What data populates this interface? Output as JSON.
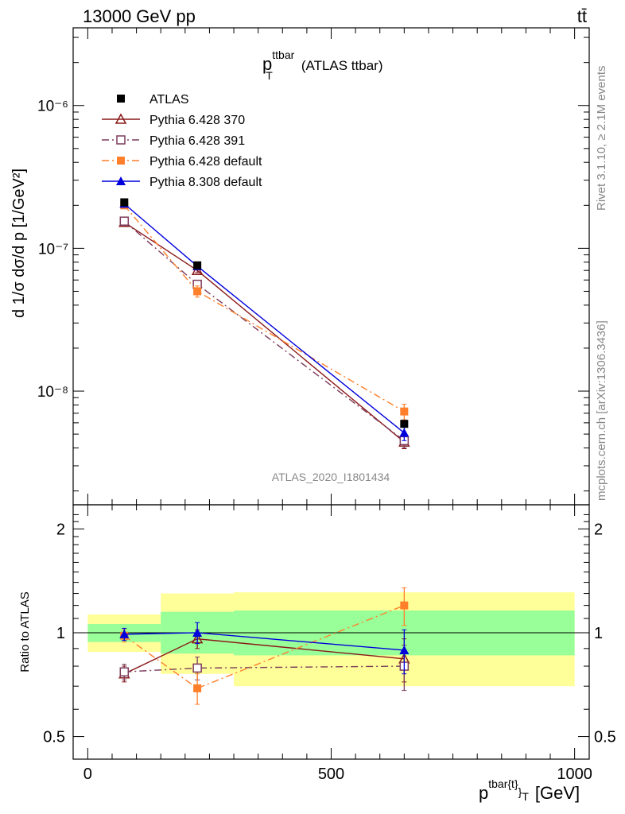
{
  "header": {
    "left": "13000 GeV pp",
    "right": "tt̄"
  },
  "side_labels": {
    "rivet": "Rivet 3.1.10, ≥ 2.1M events",
    "mcplots": "mcplots.cern.ch [arXiv:1306.3436]"
  },
  "colors": {
    "atlas": "#000000",
    "p370": "#8b1a1a",
    "p391": "#7b3b5b",
    "pdefault": "#ff7f2a",
    "p8": "#0000dd",
    "band_inner": "#99ff99",
    "band_outer": "#ffff99"
  },
  "chart_data": [
    {
      "type": "scatter",
      "title_main": "p",
      "title_sup": "ttbar",
      "title_sub": "T",
      "title_rest": "(ATLAS ttbar)",
      "analysis_id": "ATLAS_2020_I1801434",
      "ylabel_text": "d 1/σ dσ/d p [1/GeV²]",
      "yscale": "log",
      "ylim": [
        1.6e-09,
        3.5e-06
      ],
      "xlim": [
        -30,
        1030
      ],
      "y_tick_labels": [
        "10⁻⁸",
        "10⁻⁷",
        "10⁻⁶"
      ],
      "x": [
        75,
        225,
        650
      ],
      "legend_position": "top-left",
      "series": [
        {
          "name": "ATLAS",
          "key": "atlas",
          "marker": "square-filled",
          "line": "none",
          "values": [
            2.1e-07,
            7.6e-08,
            5.9e-09
          ],
          "err": [
            8e-09,
            3e-09,
            3e-10
          ]
        },
        {
          "name": "Pythia 6.428 370",
          "key": "p370",
          "marker": "triangle-open",
          "line": "solid",
          "values": [
            1.52e-07,
            7e-08,
            4.4e-09
          ],
          "err": [
            6e-09,
            2.5e-09,
            4.5e-10
          ]
        },
        {
          "name": "Pythia 6.428 391",
          "key": "p391",
          "marker": "square-open",
          "line": "dashdot",
          "values": [
            1.55e-07,
            5.6e-08,
            4.5e-09
          ],
          "err": [
            6e-09,
            3e-09,
            5e-10
          ]
        },
        {
          "name": "Pythia 6.428 default",
          "key": "pdefault",
          "marker": "square-filled",
          "line": "dashdot",
          "values": [
            2e-07,
            5e-08,
            7.2e-09
          ],
          "err": [
            8e-09,
            4.5e-09,
            9e-10
          ]
        },
        {
          "name": "Pythia 8.308 default",
          "key": "p8",
          "marker": "triangle-filled",
          "line": "solid",
          "values": [
            2.05e-07,
            7.5e-08,
            5.1e-09
          ],
          "err": [
            8e-09,
            3.5e-09,
            6e-10
          ]
        }
      ]
    },
    {
      "type": "line",
      "ylabel": "Ratio to ATLAS",
      "xlabel_main": "p",
      "xlabel_sup": "tbar{t}",
      "xlabel_tail": "}",
      "xlabel_sub": "T",
      "xlabel_unit": "[GeV]",
      "yscale": "log",
      "ylim": [
        0.43,
        2.35
      ],
      "xlim": [
        -30,
        1030
      ],
      "y_ticks": [
        0.5,
        1,
        2
      ],
      "y_tick_labels": [
        "0.5",
        "1",
        "2"
      ],
      "x_ticks": [
        0,
        500,
        1000
      ],
      "x_tick_labels": [
        "0",
        "500",
        "1000"
      ],
      "bins": [
        {
          "x0": 0,
          "x1": 150,
          "inner": [
            0.94,
            1.06
          ],
          "outer": [
            0.88,
            1.13
          ]
        },
        {
          "x0": 150,
          "x1": 300,
          "inner": [
            0.87,
            1.15
          ],
          "outer": [
            0.76,
            1.3
          ]
        },
        {
          "x0": 300,
          "x1": 1000,
          "inner": [
            0.86,
            1.16
          ],
          "outer": [
            0.7,
            1.31
          ]
        }
      ],
      "x": [
        75,
        225,
        650
      ],
      "series": [
        {
          "key": "p370",
          "marker": "triangle-open",
          "line": "solid",
          "values": [
            0.76,
            0.96,
            0.84
          ],
          "err": [
            0.04,
            0.06,
            0.12
          ]
        },
        {
          "key": "p391",
          "marker": "square-open",
          "line": "dashdot",
          "values": [
            0.77,
            0.79,
            0.8
          ],
          "err": [
            0.04,
            0.06,
            0.12
          ]
        },
        {
          "key": "pdefault",
          "marker": "square-filled",
          "line": "dashdot",
          "values": [
            0.98,
            0.69,
            1.2
          ],
          "err": [
            0.04,
            0.07,
            0.15
          ]
        },
        {
          "key": "p8",
          "marker": "triangle-filled",
          "line": "solid",
          "values": [
            0.99,
            1.0,
            0.89
          ],
          "err": [
            0.04,
            0.07,
            0.13
          ]
        }
      ]
    }
  ]
}
